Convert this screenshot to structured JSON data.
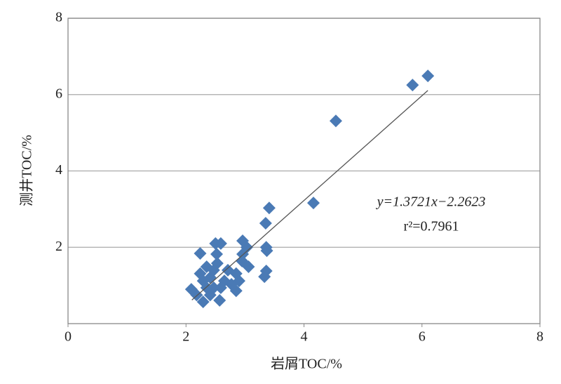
{
  "chart_data": {
    "type": "scatter",
    "x_label": "岩屑TOC/%",
    "y_label": "测井TOC/%",
    "xlim": [
      0,
      8
    ],
    "ylim": [
      0,
      8
    ],
    "xticks": [
      0,
      2,
      4,
      6,
      8
    ],
    "yticks": [
      2,
      4,
      6,
      8
    ],
    "grid": true,
    "color": "#4a7ab5",
    "x": [
      6.1,
      5.84,
      4.54,
      4.16,
      3.41,
      3.35,
      3.36,
      3.37,
      3.36,
      3.33,
      2.96,
      3.03,
      2.96,
      3.06,
      2.95,
      2.59,
      2.5,
      2.24,
      2.52,
      2.85,
      2.85,
      2.57,
      2.29,
      2.09,
      2.18,
      2.24,
      2.35,
      2.41,
      2.47,
      2.65,
      2.71,
      2.53,
      2.29,
      2.77,
      2.41,
      2.59,
      2.47,
      2.35,
      2.9
    ],
    "values": [
      6.49,
      6.25,
      5.31,
      3.16,
      3.03,
      2.63,
      2.0,
      1.91,
      1.38,
      1.23,
      2.17,
      2.0,
      1.82,
      1.49,
      1.64,
      2.1,
      2.1,
      1.84,
      1.82,
      1.31,
      0.86,
      0.61,
      0.57,
      0.9,
      0.75,
      1.31,
      1.49,
      1.21,
      0.94,
      1.12,
      1.4,
      1.58,
      1.12,
      1.03,
      0.75,
      0.94,
      1.4,
      0.94,
      1.12
    ],
    "trendline": {
      "slope": 1.3721,
      "intercept": -2.2623,
      "x_start": 2.1,
      "x_end": 6.1,
      "color": "#555555"
    },
    "annotations": [
      "y=1.3721x−2.2623",
      "r²=0.7961"
    ]
  }
}
